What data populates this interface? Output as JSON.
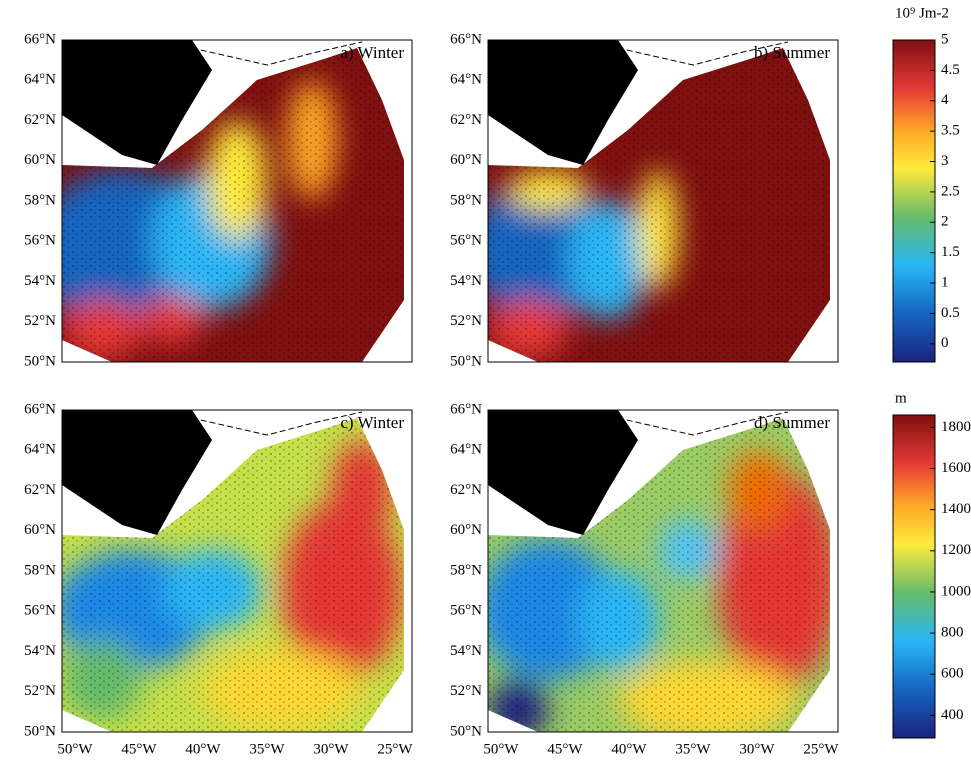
{
  "panels": [
    {
      "label": "a) Winter"
    },
    {
      "label": "b) Summer"
    },
    {
      "label": "c) Winter"
    },
    {
      "label": "d) Summer"
    }
  ],
  "lat_ticks": [
    "50°N",
    "52°N",
    "54°N",
    "56°N",
    "58°N",
    "60°N",
    "62°N",
    "64°N",
    "66°N"
  ],
  "lon_ticks": [
    "50°W",
    "45°W",
    "40°W",
    "35°W",
    "30°W",
    "25°W"
  ],
  "colorbars": [
    {
      "title": "10⁹ Jm-2",
      "range": [
        -0.3,
        5
      ],
      "ticks": [
        0,
        0.5,
        1,
        1.5,
        2,
        2.5,
        3,
        3.5,
        4,
        4.5,
        5
      ]
    },
    {
      "title": "m",
      "range": [
        290,
        1860
      ],
      "ticks": [
        400,
        600,
        800,
        1000,
        1200,
        1400,
        1600,
        1800
      ]
    }
  ]
}
